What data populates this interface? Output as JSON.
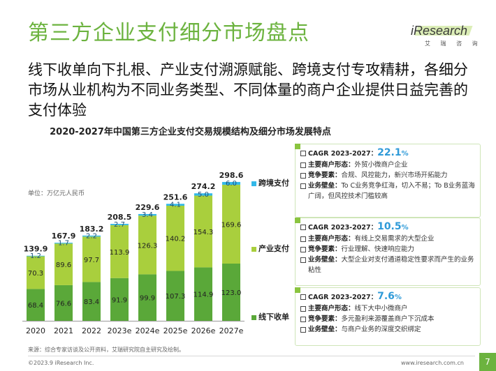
{
  "title": "第三方企业支付细分市场盘点",
  "logo": {
    "name": "iResearch",
    "subtitle": "艾 瑞 咨 询"
  },
  "subtitle": "线下收单向下扎根、产业支付溯源赋能、跨境支付专攻精耕，各细分市场从业机构为不同业务类型、不同体量的商户企业提供日益完善的支付体验",
  "unit_label": "单位：万亿元人民币",
  "chart_data": {
    "type": "bar",
    "stacked": true,
    "title": "2020-2027年中国第三方企业支付交易规模结构及细分市场发展特点",
    "categories": [
      "2020",
      "2021",
      "2022",
      "2023e",
      "2024e",
      "2025e",
      "2026e",
      "2027e"
    ],
    "series": [
      {
        "name": "线下收单",
        "color": "#5aa839",
        "values": [
          68.4,
          76.6,
          83.4,
          91.9,
          99.9,
          107.3,
          114.9,
          123.0
        ],
        "labels": [
          "68.4",
          "76.6",
          "83.4",
          "91.9",
          "99.9",
          "107.3",
          "114.9",
          "123.0"
        ]
      },
      {
        "name": "产业支付",
        "color": "#a9cf3d",
        "values": [
          70.3,
          89.6,
          97.7,
          113.9,
          126.3,
          140.2,
          154.3,
          169.6
        ],
        "labels": [
          "70.3",
          "89.6",
          "97.7",
          "113.9",
          "126.3",
          "140.2",
          "154.3",
          "169.6"
        ]
      },
      {
        "name": "跨境支付",
        "color": "#33b8e8",
        "values": [
          1.2,
          1.7,
          2.2,
          2.7,
          3.4,
          4.1,
          5.0,
          6.0
        ],
        "labels": [
          "1.2",
          "1.7",
          "2.2",
          "2.7",
          "3.4",
          "4.1",
          "5.0",
          "6.0"
        ]
      }
    ],
    "totals": [
      139.9,
      167.9,
      183.2,
      208.5,
      229.6,
      251.6,
      274.2,
      298.6
    ],
    "total_labels": [
      "139.9",
      "167.9",
      "183.2",
      "208.5",
      "229.6",
      "251.6",
      "274.2",
      "298.6"
    ],
    "ylim": [
      0,
      300
    ],
    "grid": false,
    "legend_position": "right"
  },
  "panels": [
    {
      "cagr_label": "CAGR 2023-2027：",
      "cagr_value": "22.1",
      "cagr_unit": "%",
      "rows": [
        {
          "label": "主要商户形态：",
          "text": "外贸小微商户企业"
        },
        {
          "label": "竞争要素：",
          "text": "合规、风控能力，新兴市场开拓能力"
        },
        {
          "label": "业务壁垒：",
          "text": "To C业务竞争红海，切入不易；To B业务蓝海广阔，但风控技术门槛较高"
        }
      ]
    },
    {
      "cagr_label": "CAGR 2023-2027：",
      "cagr_value": "10.5",
      "cagr_unit": "%",
      "rows": [
        {
          "label": "主要商户形态：",
          "text": "有线上交易需求的大型企业"
        },
        {
          "label": "竞争要素：",
          "text": "行业理解、快速响应能力"
        },
        {
          "label": "业务壁垒：",
          "text": "大型企业对支付通道稳定性要求而产生的业务粘性"
        }
      ]
    },
    {
      "cagr_label": "CAGR 2023-2027：",
      "cagr_value": "7.6",
      "cagr_unit": "%",
      "rows": [
        {
          "label": "主要商户形态：",
          "text": "线下大中小微商户"
        },
        {
          "label": "竞争要素：",
          "text": "多元盈利来源覆盖商户下沉成本"
        },
        {
          "label": "业务壁垒：",
          "text": "与商户业务的深度交织绑定"
        }
      ]
    }
  ],
  "source": "来源：综合专家访谈及公开资料，艾瑞研究院自主研究及绘制。",
  "copyright": "©2023.9 iResearch Inc.",
  "website": "www.iresearch.com.cn",
  "page_number": "7"
}
